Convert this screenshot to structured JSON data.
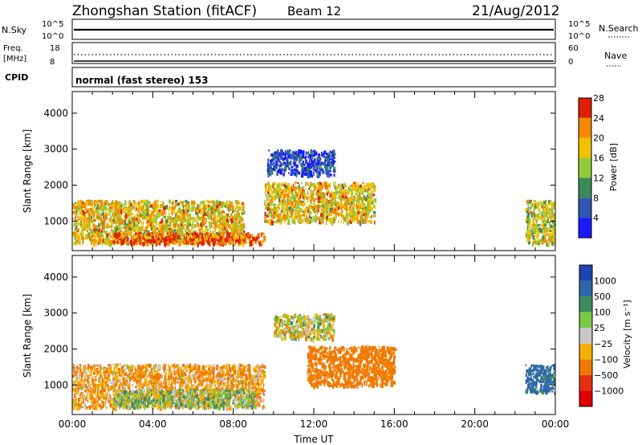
{
  "header": {
    "station": "Zhongshan Station (fitACF)",
    "beam": "Beam 12",
    "date": "21/Aug/2012"
  },
  "status_panels": {
    "nsky": {
      "label": "N.Sky",
      "tick_top": "10^5",
      "tick_bottom": "10^0"
    },
    "nsearch": {
      "label": "N.Search",
      "tick_top": "10^5",
      "tick_bottom": "10^0"
    },
    "freq": {
      "label_line1": "Freq.",
      "label_line2": "[MHz]",
      "tick_top": "18",
      "tick_bottom": "8"
    },
    "nave": {
      "label": "Nave",
      "tick_top": "60",
      "tick_bottom": "0"
    },
    "cpid": {
      "label": "CPID",
      "mode": "normal (fast stereo) 153"
    }
  },
  "chart_data": [
    {
      "type": "heatmap",
      "title": "",
      "xlabel": "",
      "ylabel": "Slant Range [km]",
      "xlim": [
        "00:00",
        "24:00"
      ],
      "ylim": [
        180,
        4600
      ],
      "yticks": [
        "1000",
        "2000",
        "3000",
        "4000"
      ],
      "colorbar": {
        "label": "Power [dB]",
        "ticks": [
          "4",
          "8",
          "12",
          "16",
          "20",
          "24",
          "28"
        ],
        "colors": [
          "#1a1aff",
          "#2f55b5",
          "#3a8a5a",
          "#93c93a",
          "#f0c200",
          "#f58a00",
          "#e02000"
        ]
      },
      "echo_regions": [
        {
          "t_start": "00:00",
          "t_end": "08:30",
          "r_min": 400,
          "r_max": 1600,
          "level_db": 20
        },
        {
          "t_start": "02:00",
          "t_end": "09:30",
          "r_min": 400,
          "r_max": 700,
          "level_db": 26
        },
        {
          "t_start": "09:30",
          "t_end": "15:00",
          "r_min": 1000,
          "r_max": 2100,
          "level_db": 20
        },
        {
          "t_start": "09:40",
          "t_end": "13:00",
          "r_min": 2300,
          "r_max": 3000,
          "level_db": 6
        },
        {
          "t_start": "22:30",
          "t_end": "24:00",
          "r_min": 400,
          "r_max": 1600,
          "level_db": 18
        }
      ]
    },
    {
      "type": "heatmap",
      "title": "",
      "xlabel": "Time UT",
      "ylabel": "Slant Range [km]",
      "xlim": [
        "00:00",
        "24:00"
      ],
      "ylim": [
        180,
        4600
      ],
      "xticks": [
        "00:00",
        "04:00",
        "08:00",
        "12:00",
        "16:00",
        "20:00",
        "00:00"
      ],
      "yticks": [
        "1000",
        "2000",
        "3000",
        "4000"
      ],
      "colorbar": {
        "label": "Velocity [m s⁻¹]",
        "ticks": [
          "1000",
          "500",
          "100",
          "25",
          "−25",
          "−100",
          "−500",
          "−1000"
        ],
        "colors": [
          "#1e44b0",
          "#2f68a8",
          "#3f8d5e",
          "#7ac943",
          "#c8c8c8",
          "#f5b000",
          "#f07a00",
          "#e83010",
          "#e00000"
        ]
      },
      "echo_regions": [
        {
          "t_start": "00:00",
          "t_end": "09:30",
          "r_min": 400,
          "r_max": 1600,
          "velocity": -100
        },
        {
          "t_start": "02:00",
          "t_end": "09:00",
          "r_min": 400,
          "r_max": 900,
          "velocity": 60
        },
        {
          "t_start": "11:40",
          "t_end": "16:00",
          "r_min": 1000,
          "r_max": 2100,
          "velocity": -300
        },
        {
          "t_start": "10:00",
          "t_end": "13:00",
          "r_min": 2300,
          "r_max": 3000,
          "velocity": 0
        },
        {
          "t_start": "22:30",
          "t_end": "24:00",
          "r_min": 800,
          "r_max": 1600,
          "velocity": 600
        }
      ]
    }
  ]
}
